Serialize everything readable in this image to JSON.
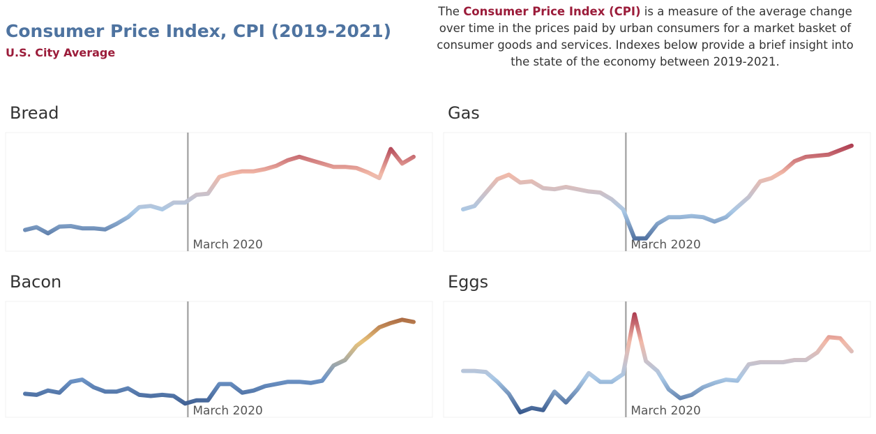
{
  "header": {
    "title": "Consumer Price Index, CPI (2019-2021)",
    "subtitle": "U.S. City Average",
    "description_start": "The",
    "description_highlight": "Consumer Price Index (CPI)",
    "description_end": "is a measure of the average change over time in the prices paid by urban consumers for a market basket of consumer goods and services. Indexes below provide a brief insight into the state of the economy between 2019-2021."
  },
  "chart_data": [
    {
      "type": "line",
      "title": "Bread",
      "categories": [
        null,
        null,
        null,
        null,
        null,
        null,
        null,
        null,
        null,
        null,
        null,
        null,
        null,
        null,
        "March 2020",
        null,
        null,
        null,
        null,
        null,
        null,
        null,
        null,
        null,
        null,
        null,
        null,
        null,
        null,
        null,
        null,
        null,
        null,
        null,
        null
      ],
      "values": [
        16.5,
        19,
        13.5,
        19.5,
        20,
        18,
        18,
        17,
        22,
        28,
        37,
        38,
        35,
        41,
        41,
        48,
        49,
        64,
        67,
        69,
        69,
        71,
        74,
        79,
        82,
        79,
        76,
        73,
        73,
        72,
        68,
        63,
        89,
        76,
        82
      ],
      "ylim": [
        0,
        100
      ],
      "colors": [
        "#34558a",
        "#a9c8e6",
        "#f2b9a8",
        "#9b1c3a"
      ]
    },
    {
      "type": "line",
      "title": "Gas",
      "categories": [
        null,
        null,
        null,
        null,
        null,
        null,
        null,
        null,
        null,
        null,
        null,
        null,
        null,
        null,
        "March 2020",
        null,
        null,
        null,
        null,
        null,
        null,
        null,
        null,
        null,
        null,
        null,
        null,
        null,
        null,
        null,
        null,
        null,
        null,
        null,
        null
      ],
      "values": [
        35,
        38,
        50,
        62,
        66,
        59,
        60,
        54,
        53,
        55,
        53,
        51,
        50,
        44,
        35,
        9,
        9,
        22,
        28,
        28,
        29,
        28,
        24,
        28,
        37,
        46,
        60,
        63,
        69,
        78,
        82,
        83,
        84,
        88,
        92
      ],
      "ylim": [
        0,
        100
      ],
      "colors": [
        "#34558a",
        "#a9c8e6",
        "#f2b9a8",
        "#9b1c3a"
      ]
    },
    {
      "type": "line",
      "title": "Bacon",
      "categories": [
        null,
        null,
        null,
        null,
        null,
        null,
        null,
        null,
        null,
        null,
        null,
        null,
        null,
        null,
        "March 2020",
        null,
        null,
        null,
        null,
        null,
        null,
        null,
        null,
        null,
        null,
        null,
        null,
        null,
        null,
        null,
        null,
        null,
        null,
        null,
        null
      ],
      "values": [
        19,
        18,
        22,
        20,
        30,
        32,
        25,
        21,
        21,
        24,
        18,
        17,
        18,
        17,
        10,
        13,
        13,
        28,
        28,
        20,
        22,
        26,
        28,
        30,
        30,
        29,
        31,
        45,
        50,
        63,
        71,
        80,
        84,
        87,
        85
      ],
      "ylim": [
        0,
        100
      ],
      "colors": [
        "#2f4d80",
        "#6f96c8",
        "#e8c27a",
        "#8a3a24"
      ]
    },
    {
      "type": "line",
      "title": "Eggs",
      "categories": [
        null,
        null,
        null,
        null,
        null,
        null,
        null,
        null,
        null,
        null,
        null,
        null,
        null,
        null,
        "March 2020",
        null,
        null,
        null,
        null,
        null,
        null,
        null,
        null,
        null,
        null,
        null,
        null,
        null,
        null,
        null,
        null,
        null,
        null,
        null,
        null
      ],
      "values": [
        40,
        40,
        39,
        30,
        19,
        2,
        6,
        4,
        21,
        11,
        23,
        38,
        30,
        30,
        37,
        92,
        49,
        40,
        23,
        15,
        18,
        25,
        29,
        32,
        31,
        46,
        48,
        48,
        48,
        50,
        50,
        57,
        71,
        70,
        58
      ],
      "ylim": [
        0,
        100
      ],
      "colors": [
        "#34558a",
        "#a9c8e6",
        "#f2b9a8",
        "#9b1c3a"
      ]
    }
  ]
}
